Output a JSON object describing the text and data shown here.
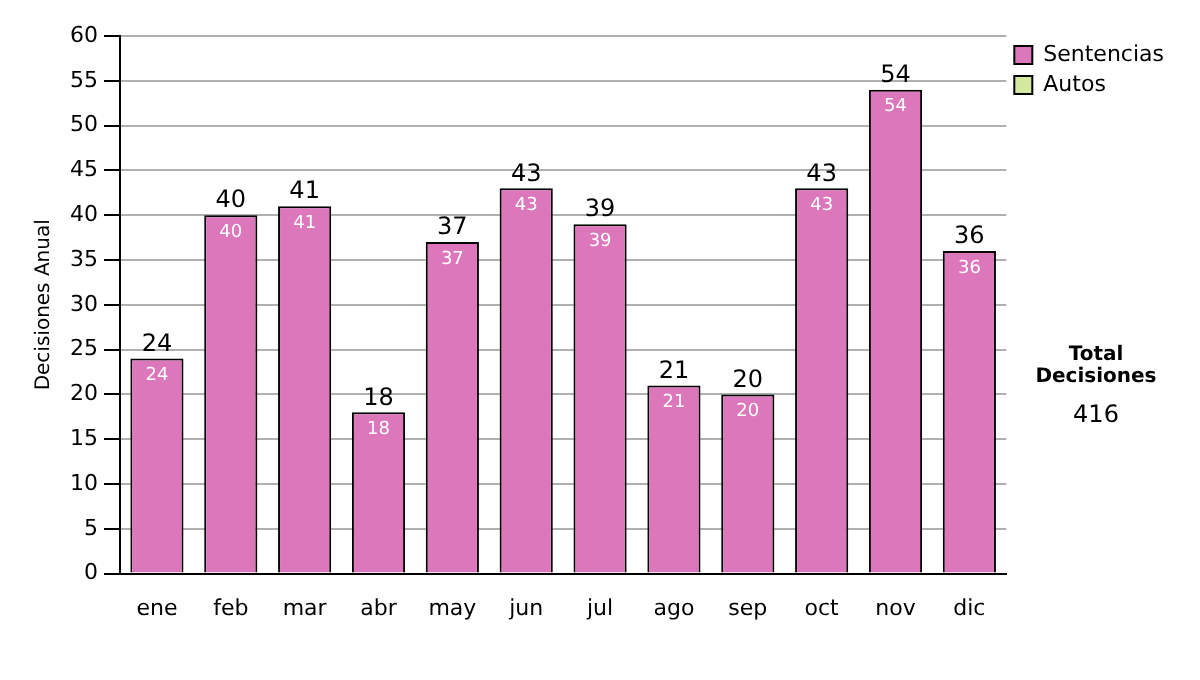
{
  "chart_data": {
    "type": "bar",
    "ylabel": "Decisiones Anual",
    "categories": [
      "ene",
      "feb",
      "mar",
      "abr",
      "may",
      "jun",
      "jul",
      "ago",
      "sep",
      "oct",
      "nov",
      "dic"
    ],
    "series": [
      {
        "name": "Sentencias",
        "color": "#dd77bb",
        "values": [
          24,
          40,
          41,
          18,
          37,
          43,
          39,
          21,
          20,
          43,
          54,
          36
        ]
      },
      {
        "name": "Autos",
        "color": "#d4e8a0",
        "values": [
          null,
          null,
          null,
          null,
          null,
          null,
          null,
          null,
          null,
          null,
          null,
          null
        ]
      }
    ],
    "stacked": true,
    "data_labels": true,
    "totals": [
      "24",
      "40",
      "41",
      "18",
      "37",
      "43",
      "39",
      "21",
      "20",
      "43",
      "54",
      "36"
    ],
    "ylim": [
      0,
      60
    ],
    "yticks": [
      0,
      5,
      10,
      15,
      20,
      25,
      30,
      35,
      40,
      45,
      50,
      55,
      60
    ],
    "grid": "y",
    "legend": "right",
    "annotations": [
      "Total Decisiones",
      "416"
    ]
  }
}
